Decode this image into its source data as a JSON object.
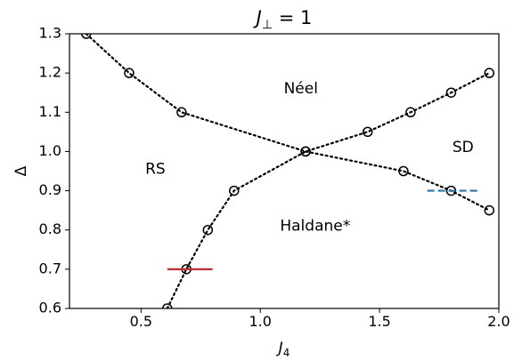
{
  "chart_data": {
    "type": "scatter",
    "title": {
      "main": "J",
      "sub": "⊥",
      "rest": " = 1"
    },
    "xlabel": {
      "main": "J",
      "sub": "4"
    },
    "ylabel": "Δ",
    "xlim": [
      0.2,
      2.0
    ],
    "ylim": [
      0.6,
      1.3
    ],
    "xticks": [
      0.5,
      1.0,
      1.5,
      2.0
    ],
    "xtick_labels": [
      "0.5",
      "1.0",
      "1.5",
      "2.0"
    ],
    "yticks": [
      0.6,
      0.7,
      0.8,
      0.9,
      1.0,
      1.1,
      1.2,
      1.3
    ],
    "ytick_labels": [
      "0.6",
      "0.7",
      "0.8",
      "0.9",
      "1.0",
      "1.1",
      "1.2",
      "1.3"
    ],
    "grid": false,
    "series": [
      {
        "style": "dotted-line-with-circles",
        "color": "#000000",
        "x": [
          0.27,
          0.45,
          0.67,
          1.19,
          1.6,
          1.8,
          1.96
        ],
        "y": [
          1.3,
          1.2,
          1.1,
          1.0,
          0.95,
          0.9,
          0.85
        ]
      },
      {
        "style": "dotted-line-with-circles",
        "color": "#000000",
        "x": [
          0.61,
          0.69,
          0.78,
          0.89,
          1.19,
          1.45,
          1.63,
          1.8,
          1.96
        ],
        "y": [
          0.6,
          0.7,
          0.8,
          0.9,
          1.0,
          1.05,
          1.1,
          1.15,
          1.2
        ]
      }
    ],
    "segments": [
      {
        "style": "solid",
        "color": "#d62728",
        "x": [
          0.61,
          0.8
        ],
        "y": [
          0.7,
          0.7
        ]
      },
      {
        "style": "dashed",
        "color": "#1f77b4",
        "x": [
          1.7,
          1.92
        ],
        "y": [
          0.9,
          0.9
        ]
      }
    ],
    "annotations": [
      {
        "text": "Néel",
        "x": 1.17,
        "y": 1.16
      },
      {
        "text": "SD",
        "x": 1.85,
        "y": 1.01
      },
      {
        "text": "RS",
        "x": 0.56,
        "y": 0.955
      },
      {
        "text": "Haldane*",
        "x": 1.23,
        "y": 0.81
      }
    ]
  }
}
